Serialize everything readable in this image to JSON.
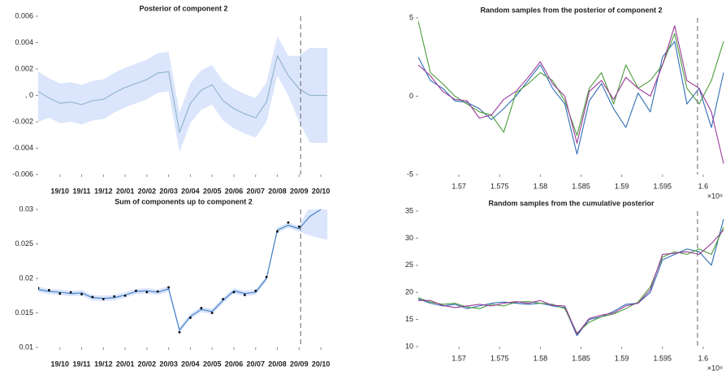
{
  "chart_data": [
    {
      "type": "line",
      "title": "Posterior of component 2",
      "x": [
        -1,
        -0.5,
        0,
        0.5,
        1,
        1.5,
        2,
        2.5,
        3,
        3.5,
        4,
        4.5,
        5,
        5.5,
        6,
        6.5,
        7,
        7.5,
        8,
        8.5,
        9,
        9.5,
        10,
        10.5,
        11,
        11.5,
        12,
        12.3
      ],
      "xlim": [
        -1,
        12.37
      ],
      "xticks": [
        {
          "value": 0,
          "label": "19/10"
        },
        {
          "value": 1,
          "label": "19/11"
        },
        {
          "value": 2,
          "label": "19/12"
        },
        {
          "value": 3,
          "label": "20/01"
        },
        {
          "value": 4,
          "label": "20/02"
        },
        {
          "value": 5,
          "label": "20/03"
        },
        {
          "value": 6,
          "label": "20/04"
        },
        {
          "value": 7,
          "label": "20/05"
        },
        {
          "value": 8,
          "label": "20/06"
        },
        {
          "value": 9,
          "label": "20/07"
        },
        {
          "value": 10,
          "label": "20/08"
        },
        {
          "value": 11,
          "label": "20/09"
        },
        {
          "value": 12,
          "label": "20/10"
        }
      ],
      "ylim": [
        -0.006,
        0.006
      ],
      "yticks": [
        -0.006,
        -0.004,
        -0.002,
        {
          "value": 0,
          "label": ", 0"
        },
        0.002,
        0.004,
        0.006
      ],
      "vline": 11.07,
      "band": {
        "color": "#dbe5fb",
        "upper": [
          0.0018,
          0.0013,
          0.0009,
          0.001,
          0.0008,
          0.0011,
          0.0012,
          0.0017,
          0.0021,
          0.0024,
          0.0027,
          0.0032,
          0.0033,
          -0.0013,
          0.0009,
          0.0019,
          0.0023,
          0.0011,
          0.0005,
          0.0001,
          -0.0002,
          0.001,
          0.0045,
          0.003,
          0.003,
          0.0036,
          0.0036,
          0.0036
        ],
        "lower": [
          -0.002,
          -0.0017,
          -0.0021,
          -0.002,
          -0.0022,
          -0.0019,
          -0.0018,
          -0.0013,
          -0.0009,
          -0.0006,
          -0.0003,
          0.0002,
          0.0003,
          -0.0043,
          -0.0021,
          -0.0011,
          -0.0007,
          -0.0019,
          -0.0025,
          -0.0029,
          -0.0032,
          -0.002,
          0.0015,
          0,
          -0.002,
          -0.0036,
          -0.0036,
          -0.0036
        ]
      },
      "series": [
        {
          "color": "#8fb3c9",
          "values": [
            0.0003,
            -0.0002,
            -0.0006,
            -0.0005,
            -0.0007,
            -0.0004,
            -0.0003,
            0.0002,
            0.0006,
            0.0009,
            0.0012,
            0.0017,
            0.0018,
            -0.0028,
            -0.0006,
            0.0004,
            0.0008,
            -0.0004,
            -0.001,
            -0.0014,
            -0.0017,
            -0.0005,
            0.003,
            0.0015,
            0.0005,
            0,
            0,
            0
          ]
        }
      ]
    },
    {
      "type": "line",
      "title": "Random samples from the posterior of component 2",
      "x": [
        1.565,
        1.5665,
        1.568,
        1.5695,
        1.571,
        1.5725,
        1.574,
        1.5755,
        1.577,
        1.5785,
        1.58,
        1.5815,
        1.583,
        1.5845,
        1.586,
        1.5875,
        1.589,
        1.5905,
        1.592,
        1.5935,
        1.595,
        1.5965,
        1.598,
        1.5995,
        1.601,
        1.6025
      ],
      "xlim": [
        1.565,
        1.6026
      ],
      "xticks": [
        1.57,
        1.575,
        1.58,
        1.585,
        1.59,
        1.595,
        1.6
      ],
      "x_offset_label": "×10⁹",
      "ylim": [
        -5,
        5
      ],
      "yticks": [
        -5,
        0,
        5
      ],
      "vline": 1.5993,
      "series": [
        {
          "color": "#2f6eb5",
          "values": [
            2.5,
            1.0,
            0.5,
            -0.3,
            -0.4,
            -0.8,
            -1.5,
            -0.8,
            0,
            1.0,
            2.0,
            0.5,
            -0.5,
            -3.7,
            -0.3,
            0.8,
            -0.8,
            -2.0,
            0.2,
            -1.0,
            2.5,
            3.5,
            -0.5,
            0.5,
            -2.0,
            1.5
          ]
        },
        {
          "color": "#4b9c3a",
          "values": [
            4.8,
            1.5,
            0.8,
            0,
            -0.5,
            -1.0,
            -1.2,
            -2.3,
            0.2,
            0.8,
            1.5,
            1.0,
            -0.3,
            -2.5,
            0.5,
            1.5,
            -0.5,
            2.0,
            0.5,
            1.0,
            2.0,
            4.0,
            0.5,
            -0.5,
            1.0,
            3.5
          ]
        },
        {
          "color": "#9a3a9a",
          "values": [
            2.0,
            1.3,
            0.3,
            -0.2,
            -0.3,
            -1.4,
            -1.2,
            -0.2,
            0.3,
            1.2,
            2.2,
            0.8,
            0,
            -3.0,
            0.3,
            1.0,
            -0.2,
            1.2,
            0.5,
            0,
            2.0,
            4.5,
            1.0,
            0.5,
            -1.0,
            -4.3
          ]
        }
      ]
    },
    {
      "type": "line",
      "title": "Sum of components up to component 2",
      "x": [
        -1,
        -0.5,
        0,
        0.5,
        1,
        1.5,
        2,
        2.5,
        3,
        3.5,
        4,
        4.5,
        5,
        5.5,
        6,
        6.5,
        7,
        7.5,
        8,
        8.5,
        9,
        9.5,
        10,
        10.5,
        11,
        11.5,
        12,
        12.3
      ],
      "xlim": [
        -1,
        12.37
      ],
      "xticks": [
        {
          "value": 0,
          "label": "19/10"
        },
        {
          "value": 1,
          "label": "19/11"
        },
        {
          "value": 2,
          "label": "19/12"
        },
        {
          "value": 3,
          "label": "20/01"
        },
        {
          "value": 4,
          "label": "20/02"
        },
        {
          "value": 5,
          "label": "20/03"
        },
        {
          "value": 6,
          "label": "20/04"
        },
        {
          "value": 7,
          "label": "20/05"
        },
        {
          "value": 8,
          "label": "20/06"
        },
        {
          "value": 9,
          "label": "20/07"
        },
        {
          "value": 10,
          "label": "20/08"
        },
        {
          "value": 11,
          "label": "20/09"
        },
        {
          "value": 12,
          "label": "20/10"
        }
      ],
      "ylim": [
        0.01,
        0.03
      ],
      "yticks": [
        0.01,
        0.015,
        0.02,
        0.025,
        0.03
      ],
      "vline": 11.07,
      "band": {
        "color": "#dbe5fb",
        "upper": [
          0.0188,
          0.0185,
          0.0184,
          0.0182,
          0.0183,
          0.0176,
          0.0175,
          0.0176,
          0.018,
          0.0185,
          0.0186,
          0.0184,
          0.0189,
          0.0129,
          0.0149,
          0.0159,
          0.0156,
          0.0172,
          0.0186,
          0.0182,
          0.0184,
          0.0204,
          0.0274,
          0.0281,
          0.0276,
          0.0305,
          0.031,
          0.031
        ],
        "lower": [
          0.018,
          0.0177,
          0.0176,
          0.0174,
          0.0175,
          0.0168,
          0.0167,
          0.0168,
          0.0172,
          0.0177,
          0.0178,
          0.0176,
          0.0181,
          0.0121,
          0.0141,
          0.0151,
          0.0148,
          0.0164,
          0.0178,
          0.0174,
          0.0176,
          0.0196,
          0.0266,
          0.0273,
          0.0268,
          0.0262,
          0.0258,
          0.0256
        ]
      },
      "series": [
        {
          "color": "#3a7ac0",
          "values": [
            0.0184,
            0.0181,
            0.018,
            0.0178,
            0.0179,
            0.0172,
            0.0171,
            0.0172,
            0.0176,
            0.0181,
            0.0182,
            0.018,
            0.0185,
            0.0125,
            0.0145,
            0.0155,
            0.0152,
            0.0168,
            0.0182,
            0.0178,
            0.018,
            0.02,
            0.027,
            0.0277,
            0.0272,
            0.029,
            0.03,
            0.0305
          ]
        }
      ],
      "observations": {
        "color": "#000000",
        "values": [
          0.0186,
          0.0183,
          0.0178,
          0.018,
          0.0177,
          0.0173,
          0.017,
          0.0174,
          0.0175,
          0.0182,
          0.018,
          0.0181,
          0.0187,
          0.0122,
          0.0143,
          0.0157,
          0.015,
          0.017,
          0.018,
          0.0176,
          0.0182,
          0.0202,
          0.0268,
          0.0281,
          0.0275,
          null,
          null,
          null
        ]
      }
    },
    {
      "type": "line",
      "title": "Random samples from the cumulative posterior",
      "x": [
        1.565,
        1.5665,
        1.568,
        1.5695,
        1.571,
        1.5725,
        1.574,
        1.5755,
        1.577,
        1.5785,
        1.58,
        1.5815,
        1.583,
        1.5845,
        1.586,
        1.5875,
        1.589,
        1.5905,
        1.592,
        1.5935,
        1.595,
        1.5965,
        1.598,
        1.5995,
        1.601,
        1.6025
      ],
      "xlim": [
        1.565,
        1.6026
      ],
      "xticks": [
        1.57,
        1.575,
        1.58,
        1.585,
        1.59,
        1.595,
        1.6
      ],
      "x_offset_label": "×10⁹",
      "ylim": [
        10,
        35
      ],
      "yticks": [
        10,
        15,
        20,
        25,
        30,
        35
      ],
      "vline": 1.5993,
      "series": [
        {
          "color": "#2f6eb5",
          "values": [
            18.8,
            18.0,
            17.5,
            17.8,
            17.0,
            17.5,
            18.0,
            18.2,
            18.0,
            17.8,
            18.0,
            17.5,
            17.2,
            12.0,
            15.0,
            15.5,
            16.5,
            17.8,
            18.0,
            20.0,
            26.0,
            27.0,
            28.0,
            27.5,
            25.0,
            33.5
          ]
        },
        {
          "color": "#4b9c3a",
          "values": [
            19.0,
            18.2,
            17.8,
            18.0,
            17.3,
            17.0,
            17.8,
            17.5,
            18.2,
            18.3,
            18.0,
            17.8,
            17.0,
            12.5,
            14.5,
            15.5,
            16.0,
            17.0,
            18.2,
            21.0,
            26.5,
            27.5,
            27.0,
            28.0,
            27.0,
            32.0
          ]
        },
        {
          "color": "#9a3a9a",
          "values": [
            18.5,
            18.5,
            17.6,
            17.2,
            17.5,
            17.8,
            17.5,
            18.0,
            18.3,
            18.0,
            18.5,
            17.6,
            17.5,
            12.3,
            15.2,
            15.8,
            16.2,
            17.5,
            18.0,
            20.5,
            27.0,
            27.2,
            27.5,
            27.0,
            29.0,
            31.5
          ]
        }
      ]
    }
  ]
}
